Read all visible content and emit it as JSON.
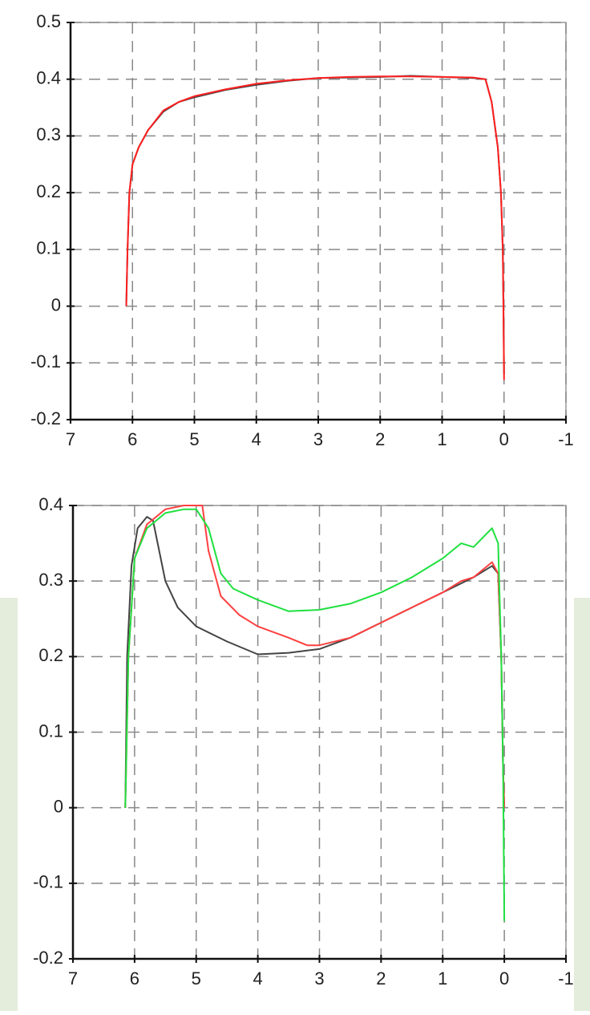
{
  "chart_data": [
    {
      "type": "line",
      "xlim": [
        7,
        -1
      ],
      "ylim": [
        -0.2,
        0.5
      ],
      "xticks": [
        7,
        6,
        5,
        4,
        3,
        2,
        1,
        0,
        -1
      ],
      "yticks": [
        -0.2,
        -0.1,
        0,
        0.1,
        0.2,
        0.3,
        0.4,
        0.5
      ],
      "grid": true,
      "series": [
        {
          "color": "#444444",
          "x": [
            6.1,
            6.08,
            6.05,
            6.0,
            5.9,
            5.75,
            5.5,
            5.25,
            5.0,
            4.5,
            4.0,
            3.5,
            3.0,
            2.5,
            2.0,
            1.5,
            1.0,
            0.5,
            0.3,
            0.2,
            0.1,
            0.05,
            0.02,
            0.01,
            0.0
          ],
          "values": [
            0,
            0.1,
            0.2,
            0.25,
            0.28,
            0.31,
            0.343,
            0.36,
            0.368,
            0.381,
            0.39,
            0.397,
            0.402,
            0.403,
            0.404,
            0.406,
            0.404,
            0.402,
            0.4,
            0.36,
            0.28,
            0.2,
            0.1,
            0,
            -0.12
          ]
        },
        {
          "color": "#ff2020",
          "x": [
            6.1,
            6.08,
            6.05,
            6.0,
            5.9,
            5.75,
            5.5,
            5.25,
            5.0,
            4.5,
            4.0,
            3.5,
            3.0,
            2.5,
            2.0,
            1.5,
            1.0,
            0.5,
            0.3,
            0.2,
            0.1,
            0.05,
            0.02,
            0.01,
            0.0
          ],
          "values": [
            0,
            0.1,
            0.2,
            0.25,
            0.28,
            0.31,
            0.345,
            0.36,
            0.37,
            0.382,
            0.392,
            0.398,
            0.402,
            0.404,
            0.405,
            0.405,
            0.404,
            0.403,
            0.4,
            0.36,
            0.28,
            0.2,
            0.1,
            0,
            -0.13
          ]
        }
      ]
    },
    {
      "type": "line",
      "xlim": [
        7,
        -1
      ],
      "ylim": [
        -0.2,
        0.4
      ],
      "xticks": [
        7,
        6,
        5,
        4,
        3,
        2,
        1,
        0,
        -1
      ],
      "yticks": [
        -0.2,
        -0.1,
        0,
        0.1,
        0.2,
        0.3,
        0.4
      ],
      "grid": true,
      "series": [
        {
          "color": "#444444",
          "x": [
            6.15,
            6.12,
            6.05,
            5.95,
            5.8,
            5.7,
            5.6,
            5.5,
            5.3,
            5.0,
            4.5,
            4.0,
            3.5,
            3.0,
            2.5,
            2.0,
            1.5,
            1.0,
            0.5,
            0.2,
            0.1,
            0.05,
            0.02,
            0.0
          ],
          "values": [
            0,
            0.2,
            0.32,
            0.37,
            0.385,
            0.38,
            0.34,
            0.3,
            0.265,
            0.24,
            0.22,
            0.203,
            0.205,
            0.21,
            0.225,
            0.245,
            0.265,
            0.285,
            0.305,
            0.32,
            0.31,
            0.2,
            0.05,
            0
          ]
        },
        {
          "color": "#ff4040",
          "x": [
            6.15,
            6.1,
            6.0,
            5.8,
            5.5,
            5.2,
            4.9,
            4.8,
            4.6,
            4.3,
            4.0,
            3.5,
            3.2,
            3.0,
            2.5,
            2.0,
            1.5,
            1.0,
            0.7,
            0.5,
            0.2,
            0.1,
            0.05,
            0.02,
            0.0
          ],
          "values": [
            0,
            0.2,
            0.33,
            0.375,
            0.395,
            0.4,
            0.4,
            0.34,
            0.28,
            0.255,
            0.24,
            0.225,
            0.215,
            0.215,
            0.225,
            0.245,
            0.265,
            0.285,
            0.3,
            0.305,
            0.325,
            0.31,
            0.2,
            0.05,
            0
          ]
        },
        {
          "color": "#20e040",
          "x": [
            6.15,
            6.1,
            6.0,
            5.8,
            5.5,
            5.2,
            5.0,
            4.8,
            4.6,
            4.4,
            4.0,
            3.5,
            3.0,
            2.5,
            2.0,
            1.5,
            1.0,
            0.7,
            0.5,
            0.2,
            0.1,
            0.05,
            0.02,
            0.0
          ],
          "values": [
            0,
            0.2,
            0.33,
            0.37,
            0.39,
            0.395,
            0.395,
            0.37,
            0.31,
            0.29,
            0.275,
            0.26,
            0.262,
            0.27,
            0.285,
            0.305,
            0.33,
            0.35,
            0.345,
            0.37,
            0.35,
            0.2,
            0.05,
            -0.15
          ]
        }
      ]
    }
  ]
}
